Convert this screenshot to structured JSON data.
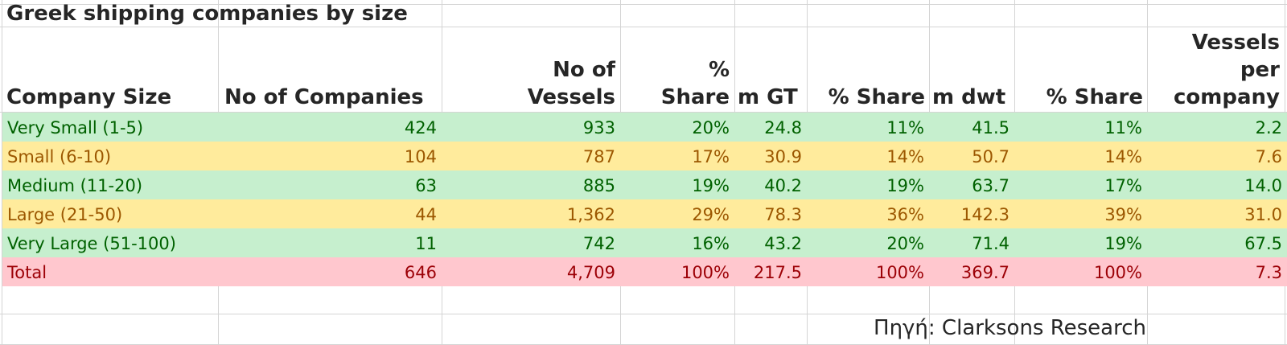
{
  "title": "Greek shipping companies by size",
  "headers": {
    "company_size": "Company Size",
    "no_of_companies": "No of Companies",
    "no_of_vessels": [
      "No of",
      "Vessels"
    ],
    "pct_share_vessels": [
      "%",
      "Share"
    ],
    "m_gt": "m GT",
    "pct_share_gt": "% Share",
    "m_dwt": "m dwt",
    "pct_share_dwt": "% Share",
    "vessels_per_company": [
      "Vessels",
      "per",
      "company"
    ]
  },
  "rows": [
    {
      "label": "Very Small (1-5)",
      "companies": "424",
      "vessels": "933",
      "share_vessels": "20%",
      "gt": "24.8",
      "share_gt": "11%",
      "dwt": "41.5",
      "share_dwt": "11%",
      "per_company": "2.2",
      "style": "green"
    },
    {
      "label": "Small (6-10)",
      "companies": "104",
      "vessels": "787",
      "share_vessels": "17%",
      "gt": "30.9",
      "share_gt": "14%",
      "dwt": "50.7",
      "share_dwt": "14%",
      "per_company": "7.6",
      "style": "yellow"
    },
    {
      "label": "Medium (11-20)",
      "companies": "63",
      "vessels": "885",
      "share_vessels": "19%",
      "gt": "40.2",
      "share_gt": "19%",
      "dwt": "63.7",
      "share_dwt": "17%",
      "per_company": "14.0",
      "style": "green"
    },
    {
      "label": "Large (21-50)",
      "companies": "44",
      "vessels": "1,362",
      "share_vessels": "29%",
      "gt": "78.3",
      "share_gt": "36%",
      "dwt": "142.3",
      "share_dwt": "39%",
      "per_company": "31.0",
      "style": "yellow"
    },
    {
      "label": "Very Large (51-100)",
      "companies": "11",
      "vessels": "742",
      "share_vessels": "16%",
      "gt": "43.2",
      "share_gt": "20%",
      "dwt": "71.4",
      "share_dwt": "19%",
      "per_company": "67.5",
      "style": "green"
    },
    {
      "label": "Total",
      "companies": "646",
      "vessels": "4,709",
      "share_vessels": "100%",
      "gt": "217.5",
      "share_gt": "100%",
      "dwt": "369.7",
      "share_dwt": "100%",
      "per_company": "7.3",
      "style": "red"
    }
  ],
  "source": "Πηγή: Clarksons Research",
  "colors": {
    "good_fill": "#c6efce",
    "good_text": "#006100",
    "neutral_fill": "#ffeb9c",
    "neutral_text": "#9c5700",
    "bad_fill": "#ffc7ce",
    "bad_text": "#9c0006"
  }
}
